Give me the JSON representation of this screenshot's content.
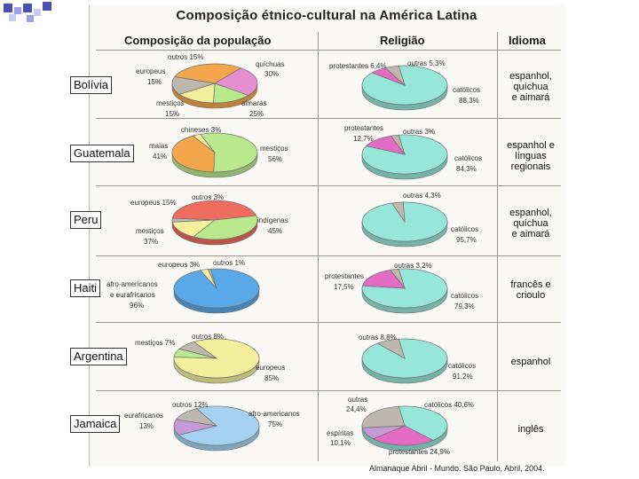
{
  "title": "Composição étnico-cultural na América Latina",
  "headers": {
    "population": "Composição da população",
    "religion": "Religião",
    "language": "Idioma"
  },
  "source": "Almanaque Abril - Mundo. São Paulo, Abril, 2004.",
  "colors": {
    "orange": "#f4a64a",
    "pink": "#e58fd0",
    "yellow": "#f4ef9c",
    "gray": "#bdb7ae",
    "green": "#b9e98c",
    "red": "#ee6d5e",
    "blue": "#59a9e8",
    "lightblue": "#a4d2f0",
    "cyan": "#96e6d9",
    "magenta": "#e46bc4",
    "purple": "#c49ad7"
  },
  "rows": [
    {
      "country": "Bolívia",
      "population_labels": [
        "outros 15%",
        "quíchuas",
        "30%",
        "aimarás",
        "25%",
        "mestiços",
        "15%",
        "europeus",
        "15%"
      ],
      "religion_labels": [
        "protestantes 6,4%",
        "outras 5,3%",
        "católicos",
        "88,3%"
      ],
      "language": [
        "espanhol,",
        "quíchua",
        "e aimará"
      ]
    },
    {
      "country": "Guatemala",
      "population_labels": [
        "chineses 3%",
        "maias",
        "41%",
        "mestiços",
        "56%"
      ],
      "religion_labels": [
        "protestantes",
        "12,7%",
        "outras 3%",
        "católicos",
        "84,3%"
      ],
      "language": [
        "espanhol e",
        "línguas",
        "regionais"
      ]
    },
    {
      "country": "Peru",
      "population_labels": [
        "europeus 15%",
        "outros 3%",
        "indígenas",
        "45%",
        "mestiços",
        "37%"
      ],
      "religion_labels": [
        "outras 4,3%",
        "católicos",
        "95,7%"
      ],
      "language": [
        "espanhol,",
        "quíchua",
        "e aimará"
      ]
    },
    {
      "country": "Haiti",
      "population_labels": [
        "europeus 3%",
        "outros 1%",
        "afro-americanos",
        "e eurafricanos",
        "96%"
      ],
      "religion_labels": [
        "outras 3,2%",
        "protestantes",
        "17,5%",
        "católicos",
        "79,3%"
      ],
      "language": [
        "francês e",
        "crioulo"
      ]
    },
    {
      "country": "Argentina",
      "population_labels": [
        "mestiços 7%",
        "outros 8%",
        "europeus",
        "85%"
      ],
      "religion_labels": [
        "outras 8,8%",
        "católicos",
        "91,2%"
      ],
      "language": [
        "espanhol"
      ]
    },
    {
      "country": "Jamaica",
      "population_labels": [
        "outros 12%",
        "eurafricanos",
        "13%",
        "afro-americanos",
        "75%"
      ],
      "religion_labels": [
        "outras",
        "24,4%",
        "católicos 40,6%",
        "espíritas",
        "10,1%",
        "protestantes 24,9%"
      ],
      "language": [
        "inglês"
      ]
    }
  ],
  "chart_data": [
    {
      "type": "pie",
      "title": "Bolívia - Composição da população",
      "categories": [
        "quíchuas",
        "aimarás",
        "mestiços",
        "europeus",
        "outros"
      ],
      "values": [
        30,
        25,
        15,
        15,
        15
      ],
      "colors": [
        "#f4a64a",
        "#e58fd0",
        "#b9e98c",
        "#f4ef9c",
        "#bdb7ae"
      ]
    },
    {
      "type": "pie",
      "title": "Bolívia - Religião",
      "categories": [
        "católicos",
        "protestantes",
        "outras"
      ],
      "values": [
        88.3,
        6.4,
        5.3
      ],
      "colors": [
        "#96e6d9",
        "#e46bc4",
        "#bdb7ae"
      ]
    },
    {
      "type": "pie",
      "title": "Guatemala - Composição da população",
      "categories": [
        "mestiços",
        "maias",
        "chineses"
      ],
      "values": [
        56,
        41,
        3
      ],
      "colors": [
        "#b9e98c",
        "#f4a64a",
        "#f4ef9c"
      ]
    },
    {
      "type": "pie",
      "title": "Guatemala - Religião",
      "categories": [
        "católicos",
        "protestantes",
        "outras"
      ],
      "values": [
        84.3,
        12.7,
        3
      ],
      "colors": [
        "#96e6d9",
        "#e46bc4",
        "#bdb7ae"
      ]
    },
    {
      "type": "pie",
      "title": "Peru - Composição da população",
      "categories": [
        "indígenas",
        "mestiços",
        "europeus",
        "outros"
      ],
      "values": [
        45,
        37,
        15,
        3
      ],
      "colors": [
        "#ee6d5e",
        "#b9e98c",
        "#f4ef9c",
        "#bdb7ae"
      ]
    },
    {
      "type": "pie",
      "title": "Peru - Religião",
      "categories": [
        "católicos",
        "outras"
      ],
      "values": [
        95.7,
        4.3
      ],
      "colors": [
        "#96e6d9",
        "#bdb7ae"
      ]
    },
    {
      "type": "pie",
      "title": "Haiti - Composição da população",
      "categories": [
        "afro-americanos e eurafricanos",
        "europeus",
        "outros"
      ],
      "values": [
        96,
        3,
        1
      ],
      "colors": [
        "#59a9e8",
        "#f4ef9c",
        "#bdb7ae"
      ]
    },
    {
      "type": "pie",
      "title": "Haiti - Religião",
      "categories": [
        "católicos",
        "protestantes",
        "outras"
      ],
      "values": [
        79.3,
        17.5,
        3.2
      ],
      "colors": [
        "#96e6d9",
        "#e46bc4",
        "#bdb7ae"
      ]
    },
    {
      "type": "pie",
      "title": "Argentina - Composição da população",
      "categories": [
        "europeus",
        "mestiços",
        "outros"
      ],
      "values": [
        85,
        7,
        8
      ],
      "colors": [
        "#f4ef9c",
        "#b9e98c",
        "#bdb7ae"
      ]
    },
    {
      "type": "pie",
      "title": "Argentina - Religião",
      "categories": [
        "católicos",
        "outras"
      ],
      "values": [
        91.2,
        8.8
      ],
      "colors": [
        "#96e6d9",
        "#bdb7ae"
      ]
    },
    {
      "type": "pie",
      "title": "Jamaica - Composição da população",
      "categories": [
        "afro-americanos",
        "eurafricanos",
        "outros"
      ],
      "values": [
        75,
        13,
        12
      ],
      "colors": [
        "#a4d2f0",
        "#c49ad7",
        "#bdb7ae"
      ]
    },
    {
      "type": "pie",
      "title": "Jamaica - Religião",
      "categories": [
        "católicos",
        "protestantes",
        "espíritas",
        "outras"
      ],
      "values": [
        40.6,
        24.9,
        10.1,
        24.4
      ],
      "colors": [
        "#96e6d9",
        "#e46bc4",
        "#c49ad7",
        "#bdb7ae"
      ]
    }
  ]
}
